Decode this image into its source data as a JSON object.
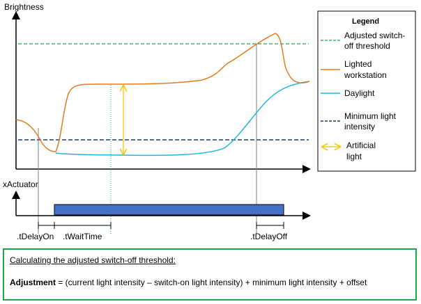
{
  "diagram": {
    "y_axis_label": "Brightness",
    "x_actuator_label": "xActuator",
    "timing_labels": {
      "delay_on": ".tDelayOn",
      "wait_time": ".tWaitTime",
      "delay_off": ".tDelayOff"
    }
  },
  "legend": {
    "title": "Legend",
    "items": [
      {
        "line1": "Adjusted switch-",
        "line2": "off threshold",
        "color": "#1aa64a",
        "style": "dashed"
      },
      {
        "line1": "Lighted",
        "line2": "workstation",
        "color": "#e07b20",
        "style": "solid"
      },
      {
        "line1": "Daylight",
        "line2": "",
        "color": "#21b6e0",
        "style": "solid"
      },
      {
        "line1": "Minimum light",
        "line2": "intensity",
        "color": "#1f3864",
        "style": "dashed"
      },
      {
        "line1": "Artificial",
        "line2": "light",
        "color": "#f2c200",
        "style": "arrow"
      }
    ]
  },
  "formula": {
    "heading": "Calculating the adjusted switch-off threshold:",
    "term": "Adjustment",
    "expression": " = (current light intensity – switch-on light intensity) + minimum light intensity + offset"
  },
  "colors": {
    "threshold": "#1aa64a",
    "workstation": "#e07b20",
    "daylight": "#21b6e0",
    "min_intensity": "#1f3864",
    "artificial": "#f2c200",
    "actuator_bar": "#4472c4",
    "box_border": "#1aa64a"
  }
}
